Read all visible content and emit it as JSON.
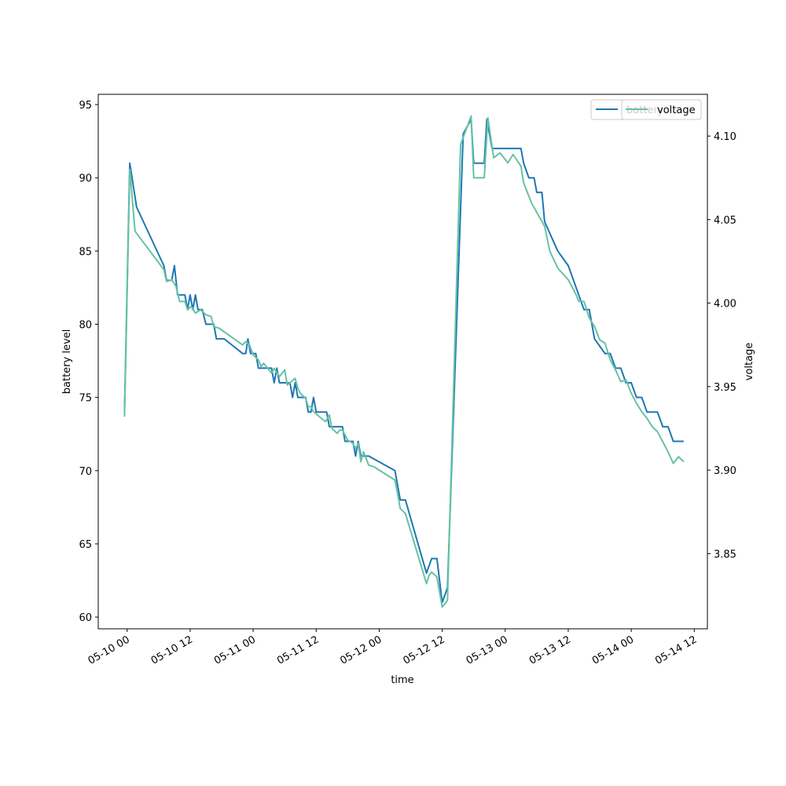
{
  "chart_data": {
    "type": "line",
    "xlabel": "time",
    "x_ticks": [
      "05-10 00",
      "05-10 12",
      "05-11 00",
      "05-11 12",
      "05-12 00",
      "05-12 12",
      "05-13 00",
      "05-13 12",
      "05-14 00",
      "05-14 12"
    ],
    "x_tick_hours": [
      0,
      12,
      24,
      36,
      48,
      60,
      72,
      84,
      96,
      108
    ],
    "xlim_hours": [
      -5.5,
      110.5
    ],
    "left_axis": {
      "label": "battery level",
      "ylim": [
        59.2,
        95.7
      ],
      "ticks": [
        60,
        65,
        70,
        75,
        80,
        85,
        90,
        95
      ]
    },
    "right_axis": {
      "label": "voltage",
      "ylim": [
        3.805,
        4.125
      ],
      "ticks": [
        3.85,
        3.9,
        3.95,
        4.0,
        4.05,
        4.1
      ],
      "tick_labels": [
        "3.85",
        "3.90",
        "3.95",
        "4.00",
        "4.05",
        "4.10"
      ]
    },
    "series": [
      {
        "name": "battery",
        "axis": "left",
        "color": "#1f77b4",
        "points": [
          [
            -0.5,
            74
          ],
          [
            0.5,
            91
          ],
          [
            1.8,
            88
          ],
          [
            7,
            84
          ],
          [
            7.5,
            83
          ],
          [
            8.5,
            83
          ],
          [
            9,
            84
          ],
          [
            9.6,
            82
          ],
          [
            11,
            82
          ],
          [
            11.5,
            81
          ],
          [
            12,
            82
          ],
          [
            12.5,
            81
          ],
          [
            13,
            82
          ],
          [
            13.5,
            81
          ],
          [
            14.3,
            81
          ],
          [
            15,
            80
          ],
          [
            16.5,
            80
          ],
          [
            17,
            79
          ],
          [
            18.5,
            79
          ],
          [
            22,
            78
          ],
          [
            22.6,
            78
          ],
          [
            23,
            79
          ],
          [
            23.5,
            78
          ],
          [
            24.5,
            78
          ],
          [
            25,
            77
          ],
          [
            27.5,
            77
          ],
          [
            28,
            76
          ],
          [
            28.5,
            77
          ],
          [
            29,
            76
          ],
          [
            31,
            76
          ],
          [
            31.5,
            75
          ],
          [
            32,
            76
          ],
          [
            32.5,
            75
          ],
          [
            34,
            75
          ],
          [
            34.5,
            74
          ],
          [
            35,
            74
          ],
          [
            35.5,
            75
          ],
          [
            36,
            74
          ],
          [
            38,
            74
          ],
          [
            38.5,
            73
          ],
          [
            41,
            73
          ],
          [
            41.5,
            72
          ],
          [
            43,
            72
          ],
          [
            43.5,
            71
          ],
          [
            44,
            72
          ],
          [
            44.5,
            71
          ],
          [
            46,
            71
          ],
          [
            51,
            70
          ],
          [
            52,
            68
          ],
          [
            53,
            68
          ],
          [
            57,
            63
          ],
          [
            58,
            64
          ],
          [
            59,
            64
          ],
          [
            60,
            61
          ],
          [
            61,
            62
          ],
          [
            64,
            93
          ],
          [
            65.5,
            94
          ],
          [
            66,
            91
          ],
          [
            68,
            91
          ],
          [
            68.5,
            94
          ],
          [
            69.5,
            92
          ],
          [
            75,
            92
          ],
          [
            75.5,
            91
          ],
          [
            76.5,
            90
          ],
          [
            77.5,
            90
          ],
          [
            78,
            89
          ],
          [
            79,
            89
          ],
          [
            79.5,
            87
          ],
          [
            82,
            85
          ],
          [
            84,
            84
          ],
          [
            86,
            82
          ],
          [
            87,
            81
          ],
          [
            88,
            81
          ],
          [
            89,
            79
          ],
          [
            91,
            78
          ],
          [
            92,
            78
          ],
          [
            93,
            77
          ],
          [
            94,
            77
          ],
          [
            95,
            76
          ],
          [
            96,
            76
          ],
          [
            97,
            75
          ],
          [
            98,
            75
          ],
          [
            99,
            74
          ],
          [
            101,
            74
          ],
          [
            102,
            73
          ],
          [
            103,
            73
          ],
          [
            104,
            72
          ],
          [
            106,
            72
          ]
        ]
      },
      {
        "name": "voltage",
        "axis": "right",
        "color": "#66c2a5",
        "points": [
          [
            -0.5,
            3.932
          ],
          [
            0.5,
            4.08
          ],
          [
            1.5,
            4.043
          ],
          [
            7,
            4.02
          ],
          [
            7.5,
            4.013
          ],
          [
            8.5,
            4.014
          ],
          [
            9.3,
            4.01
          ],
          [
            10,
            4.001
          ],
          [
            11,
            4.001
          ],
          [
            11.5,
            3.996
          ],
          [
            12.2,
            3.998
          ],
          [
            13,
            3.994
          ],
          [
            14,
            3.996
          ],
          [
            15,
            3.993
          ],
          [
            16,
            3.992
          ],
          [
            16.5,
            3.986
          ],
          [
            17.5,
            3.985
          ],
          [
            22,
            3.975
          ],
          [
            22.6,
            3.977
          ],
          [
            23.3,
            3.975
          ],
          [
            24,
            3.969
          ],
          [
            25,
            3.966
          ],
          [
            25.5,
            3.962
          ],
          [
            26,
            3.964
          ],
          [
            27,
            3.96
          ],
          [
            27.5,
            3.958
          ],
          [
            28,
            3.961
          ],
          [
            29,
            3.956
          ],
          [
            30,
            3.96
          ],
          [
            30.5,
            3.951
          ],
          [
            32,
            3.955
          ],
          [
            32.5,
            3.949
          ],
          [
            33,
            3.946
          ],
          [
            34,
            3.943
          ],
          [
            34.5,
            3.938
          ],
          [
            35,
            3.938
          ],
          [
            35.5,
            3.935
          ],
          [
            37,
            3.931
          ],
          [
            37.8,
            3.929
          ],
          [
            38.5,
            3.933
          ],
          [
            39,
            3.925
          ],
          [
            40,
            3.922
          ],
          [
            40.5,
            3.924
          ],
          [
            41,
            3.924
          ],
          [
            42,
            3.918
          ],
          [
            43,
            3.916
          ],
          [
            43.5,
            3.913
          ],
          [
            44,
            3.916
          ],
          [
            44.5,
            3.905
          ],
          [
            45,
            3.911
          ],
          [
            46,
            3.903
          ],
          [
            47,
            3.902
          ],
          [
            51,
            3.894
          ],
          [
            51.5,
            3.886
          ],
          [
            52,
            3.877
          ],
          [
            53,
            3.874
          ],
          [
            57,
            3.832
          ],
          [
            57.5,
            3.837
          ],
          [
            58,
            3.839
          ],
          [
            59,
            3.836
          ],
          [
            60,
            3.818
          ],
          [
            61,
            3.822
          ],
          [
            63.5,
            4.095
          ],
          [
            65.5,
            4.112
          ],
          [
            66,
            4.075
          ],
          [
            68,
            4.075
          ],
          [
            68.7,
            4.111
          ],
          [
            69.8,
            4.087
          ],
          [
            71,
            4.09
          ],
          [
            72.5,
            4.084
          ],
          [
            73.5,
            4.089
          ],
          [
            75,
            4.082
          ],
          [
            75.5,
            4.072
          ],
          [
            77,
            4.06
          ],
          [
            79.5,
            4.046
          ],
          [
            80.5,
            4.031
          ],
          [
            82,
            4.021
          ],
          [
            84,
            4.014
          ],
          [
            85.5,
            4.005
          ],
          [
            86,
            4.001
          ],
          [
            87,
            4.001
          ],
          [
            88,
            3.991
          ],
          [
            89,
            3.986
          ],
          [
            90,
            3.978
          ],
          [
            91,
            3.976
          ],
          [
            92,
            3.966
          ],
          [
            93,
            3.96
          ],
          [
            94,
            3.953
          ],
          [
            95,
            3.954
          ],
          [
            96,
            3.946
          ],
          [
            97,
            3.94
          ],
          [
            98,
            3.935
          ],
          [
            99,
            3.931
          ],
          [
            100,
            3.926
          ],
          [
            101,
            3.923
          ],
          [
            102,
            3.917
          ],
          [
            103,
            3.911
          ],
          [
            104,
            3.904
          ],
          [
            105,
            3.908
          ],
          [
            106,
            3.905
          ]
        ]
      }
    ],
    "legends": [
      {
        "entries": [
          "battery"
        ],
        "placement": "upper-right"
      },
      {
        "entries": [
          "voltage"
        ],
        "placement": "upper-right (overlapping)"
      }
    ]
  }
}
